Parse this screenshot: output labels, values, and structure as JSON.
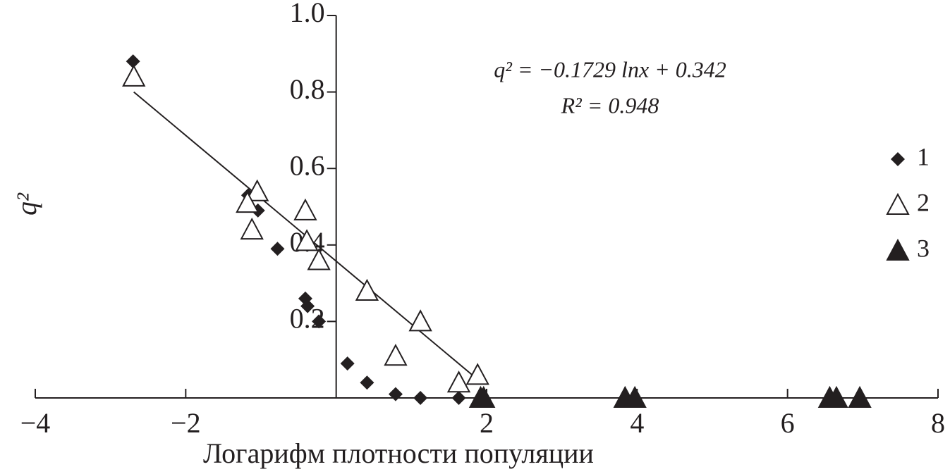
{
  "chart_data": {
    "type": "scatter",
    "xlabel": "Логарифм плотности популяции",
    "ylabel": "q²",
    "annotations": [
      "q² = −0.1729 lnx + 0.342",
      "R² = 0.948"
    ],
    "xlim": [
      -4,
      8
    ],
    "ylim": [
      0,
      1
    ],
    "xticks": [
      {
        "value": -4,
        "label": "−4"
      },
      {
        "value": -2,
        "label": "−2"
      },
      2,
      4,
      6,
      {
        "value": 8,
        "label": "8"
      }
    ],
    "yticks": [
      0.2,
      0.4,
      0.6,
      0.8,
      {
        "value": 1,
        "label": "1.0"
      }
    ],
    "series": [
      {
        "name": "1",
        "marker": "diamond",
        "color": "#231f20",
        "x": [
          -2.7,
          -1.17,
          -1.04,
          -0.78,
          -0.41,
          -0.38,
          -0.23,
          0.15,
          0.41,
          0.79,
          1.12,
          1.63,
          1.92
        ],
        "values": [
          0.88,
          0.53,
          0.49,
          0.39,
          0.26,
          0.24,
          0.2,
          0.09,
          0.04,
          0.01,
          0,
          0,
          0
        ]
      },
      {
        "name": "2",
        "marker": "triangle-open",
        "color": "#231f20",
        "x": [
          -2.69,
          -1.05,
          -1.18,
          -1.12,
          -0.41,
          -0.39,
          -0.23,
          0.41,
          1.12,
          0.79,
          1.88,
          1.63
        ],
        "values": [
          0.84,
          0.54,
          0.51,
          0.44,
          0.49,
          0.41,
          0.36,
          0.28,
          0.2,
          0.11,
          0.06,
          0.04
        ]
      },
      {
        "name": "3",
        "marker": "triangle",
        "color": "#231f20",
        "x": [
          1.92,
          1.96,
          3.84,
          3.97,
          6.56,
          6.65,
          6.96
        ],
        "values": [
          0,
          0,
          0,
          0,
          0,
          0,
          0
        ]
      }
    ],
    "trendline": {
      "x": [
        -2.69,
        1.87
      ],
      "y": [
        0.8,
        0.05
      ]
    }
  }
}
